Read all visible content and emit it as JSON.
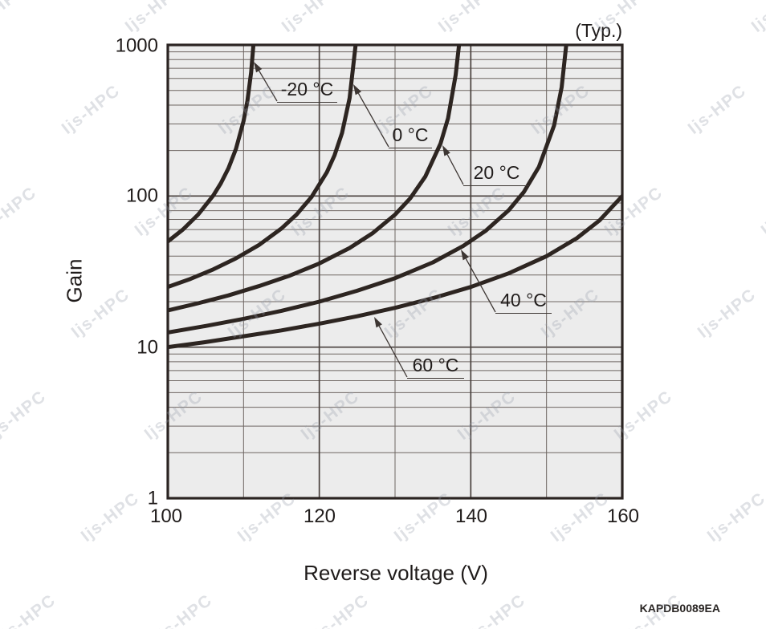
{
  "page": {
    "typ_label": "(Typ.)",
    "code_label": "KAPDB0089EA"
  },
  "watermark": {
    "text": "Ijs-HPC"
  },
  "chart_data": {
    "type": "line",
    "title": "(Typ.)",
    "xlabel": "Reverse voltage (V)",
    "ylabel": "Gain",
    "x_axis": {
      "min": 100,
      "max": 160,
      "tick_labels": [
        "100",
        "120",
        "140",
        "160"
      ],
      "minor_gridlines": [
        110,
        130,
        150
      ],
      "major_gridlines": [
        120,
        140
      ]
    },
    "y_axis": {
      "scale": "log",
      "min": 1,
      "max": 1000,
      "tick_labels": [
        "1",
        "10",
        "100",
        "1000"
      ],
      "major_gridlines": [
        10,
        100
      ]
    },
    "grid": true,
    "legend_position": "inline-callouts",
    "series": [
      {
        "name": "-20 °C",
        "points": [
          [
            100,
            50
          ],
          [
            102,
            60.1
          ],
          [
            104,
            75.3
          ],
          [
            106,
            100.8
          ],
          [
            107,
            121.4
          ],
          [
            108,
            152.6
          ],
          [
            109,
            205.2
          ],
          [
            110,
            313.2
          ],
          [
            110.5,
            425
          ],
          [
            111,
            661
          ],
          [
            111.3,
            1000
          ]
        ]
      },
      {
        "name": "0 °C",
        "points": [
          [
            100,
            25
          ],
          [
            103,
            28.3
          ],
          [
            106,
            32.7
          ],
          [
            109,
            38.7
          ],
          [
            112,
            47.3
          ],
          [
            115,
            61
          ],
          [
            117,
            75.4
          ],
          [
            119,
            98.9
          ],
          [
            121,
            143.6
          ],
          [
            122,
            185.3
          ],
          [
            123,
            261.6
          ],
          [
            124,
            444.6
          ],
          [
            124.8,
            1000
          ]
        ]
      },
      {
        "name": "20 °C",
        "points": [
          [
            100,
            17.5
          ],
          [
            104,
            19.5
          ],
          [
            108,
            22
          ],
          [
            112,
            25.3
          ],
          [
            116,
            29.6
          ],
          [
            120,
            35.8
          ],
          [
            124,
            45.3
          ],
          [
            127,
            56.6
          ],
          [
            130,
            75.3
          ],
          [
            132,
            96.6
          ],
          [
            134,
            134.5
          ],
          [
            136,
            222
          ],
          [
            137,
            327
          ],
          [
            138,
            633
          ],
          [
            138.45,
            1000
          ]
        ]
      },
      {
        "name": "40 °C",
        "points": [
          [
            100,
            12.5
          ],
          [
            105,
            13.8
          ],
          [
            110,
            15.4
          ],
          [
            115,
            17.4
          ],
          [
            120,
            20
          ],
          [
            125,
            23.6
          ],
          [
            130,
            28.6
          ],
          [
            135,
            36.4
          ],
          [
            139,
            46.7
          ],
          [
            142,
            59.1
          ],
          [
            145,
            80.5
          ],
          [
            147,
            106.2
          ],
          [
            149,
            155.9
          ],
          [
            151,
            293.3
          ],
          [
            152,
            524.3
          ],
          [
            152.6,
            1000
          ]
        ]
      },
      {
        "name": "60 °C",
        "points": [
          [
            100,
            10
          ],
          [
            105,
            10.8
          ],
          [
            110,
            11.8
          ],
          [
            115,
            12.9
          ],
          [
            120,
            14.3
          ],
          [
            125,
            16
          ],
          [
            130,
            18.2
          ],
          [
            135,
            21.1
          ],
          [
            140,
            25
          ],
          [
            145,
            30.8
          ],
          [
            150,
            40
          ],
          [
            154,
            52.6
          ],
          [
            157,
            69
          ],
          [
            160,
            100
          ]
        ]
      }
    ]
  }
}
